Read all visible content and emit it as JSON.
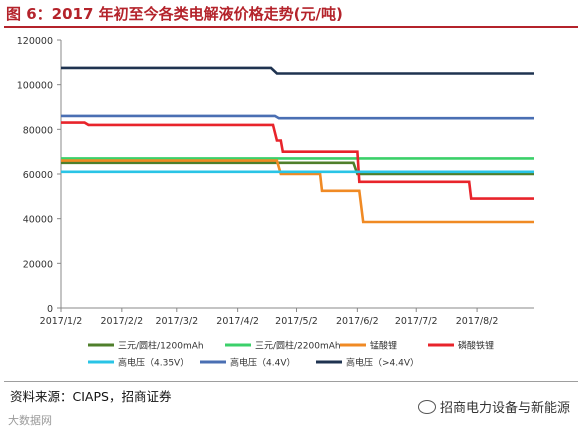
{
  "title": "图 6：2017 年初至今各类电解液价格走势(元/吨)",
  "source": "资料来源：CIAPS，招商证券",
  "watermark_left": "大数据网",
  "watermark_right": "招商电力设备与新能源",
  "chart_data": {
    "type": "line",
    "x": [
      "2017/1/2",
      "2017/2/2",
      "2017/3/2",
      "2017/4/2",
      "2017/5/2",
      "2017/6/2",
      "2017/7/2",
      "2017/8/2"
    ],
    "ylim": [
      0,
      120000
    ],
    "yticks": [
      0,
      20000,
      40000,
      60000,
      80000,
      100000,
      120000
    ],
    "grid": false,
    "legend_position": "bottom",
    "series": [
      {
        "name": "三元/圆柱/1200mAh",
        "color": "#4f7f2b",
        "points": [
          [
            "2017/1/2",
            65000
          ],
          [
            "2017/4/18",
            65000
          ],
          [
            "2017/4/20",
            65000
          ],
          [
            "2017/5/10",
            65000
          ],
          [
            "2017/5/31",
            65000
          ],
          [
            "2017/6/2",
            60000
          ],
          [
            "2017/8/31",
            60000
          ]
        ]
      },
      {
        "name": "三元/圆柱/2200mAh",
        "color": "#3bd06a",
        "points": [
          [
            "2017/1/2",
            67000
          ],
          [
            "2017/8/31",
            67000
          ]
        ]
      },
      {
        "name": "锰酸锂",
        "color": "#f08a24",
        "points": [
          [
            "2017/1/2",
            66000
          ],
          [
            "2017/4/22",
            66000
          ],
          [
            "2017/4/24",
            60000
          ],
          [
            "2017/5/14",
            60000
          ],
          [
            "2017/5/15",
            52500
          ],
          [
            "2017/6/3",
            52500
          ],
          [
            "2017/6/5",
            38500
          ],
          [
            "2017/8/31",
            38500
          ]
        ]
      },
      {
        "name": "磷酸铁锂",
        "color": "#e8242b",
        "points": [
          [
            "2017/1/2",
            83000
          ],
          [
            "2017/1/14",
            83000
          ],
          [
            "2017/1/16",
            82000
          ],
          [
            "2017/4/20",
            82000
          ],
          [
            "2017/4/22",
            75000
          ],
          [
            "2017/4/24",
            75000
          ],
          [
            "2017/4/25",
            70000
          ],
          [
            "2017/6/2",
            70000
          ],
          [
            "2017/6/3",
            56500
          ],
          [
            "2017/7/29",
            56500
          ],
          [
            "2017/7/30",
            49000
          ],
          [
            "2017/8/31",
            49000
          ]
        ]
      },
      {
        "name": "高电压（4.35V）",
        "color": "#29c4e6",
        "points": [
          [
            "2017/1/2",
            61000
          ],
          [
            "2017/8/31",
            61000
          ]
        ]
      },
      {
        "name": "高电压（4.4V）",
        "color": "#4a6fb3",
        "points": [
          [
            "2017/1/2",
            86000
          ],
          [
            "2017/4/21",
            86000
          ],
          [
            "2017/4/23",
            85000
          ],
          [
            "2017/8/31",
            85000
          ]
        ]
      },
      {
        "name": "高电压（>4.4V）",
        "color": "#1f3350",
        "points": [
          [
            "2017/1/2",
            107500
          ],
          [
            "2017/4/19",
            107500
          ],
          [
            "2017/4/22",
            105000
          ],
          [
            "2017/8/31",
            105000
          ]
        ]
      }
    ]
  }
}
